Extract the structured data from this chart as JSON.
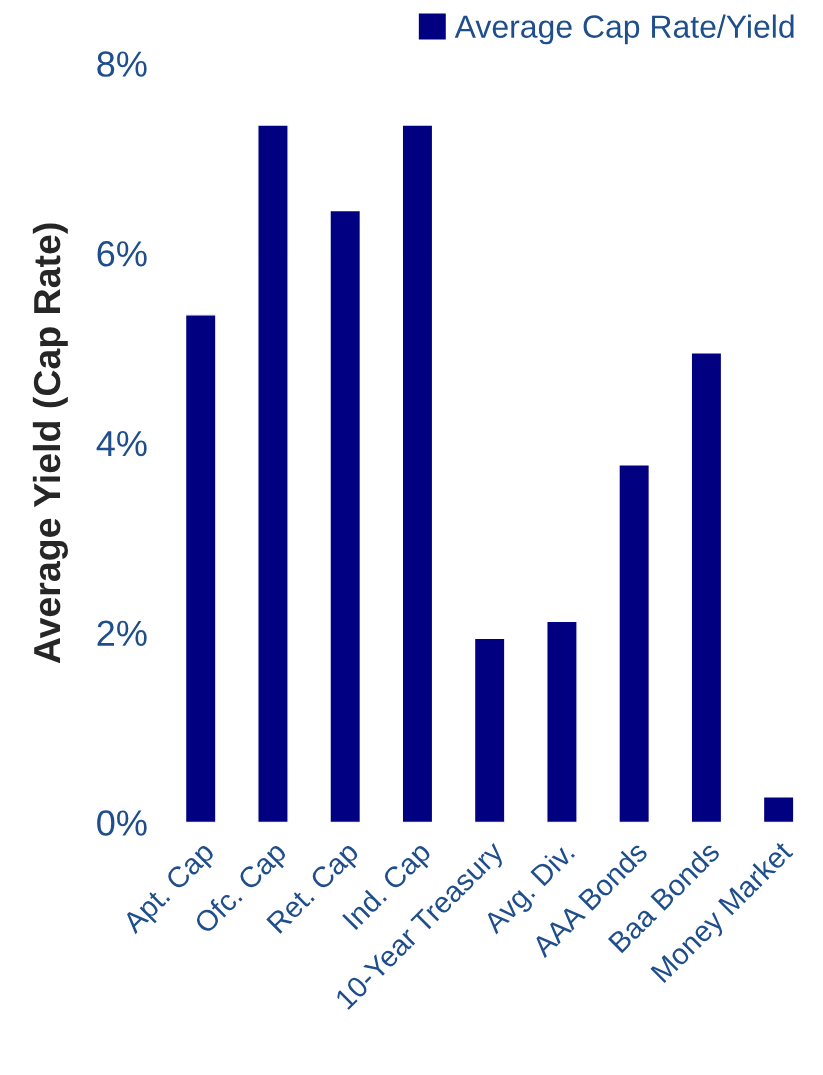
{
  "chart_data": {
    "type": "bar",
    "ylabel": "Average Yield (Cap Rate)",
    "categories": [
      "Apt. Cap",
      "Ofc. Cap",
      "Ret. Cap",
      "Ind. Cap",
      "10-Year Treasury",
      "Avg. Div.",
      "AAA Bonds",
      "Baa Bonds",
      "Money Market"
    ],
    "series": [
      {
        "name": "Average Cap Rate/Yield",
        "color": "#000080",
        "values": [
          5.35,
          7.35,
          6.45,
          7.35,
          1.94,
          2.12,
          3.77,
          4.95,
          0.27
        ]
      }
    ],
    "ylim": [
      0,
      8
    ],
    "yticks": [
      {
        "value": 0,
        "label": "0%"
      },
      {
        "value": 2,
        "label": "2%"
      },
      {
        "value": 4,
        "label": "4%"
      },
      {
        "value": 6,
        "label": "6%"
      },
      {
        "value": 8,
        "label": "8%"
      }
    ],
    "grid": false,
    "legend": "top right"
  }
}
